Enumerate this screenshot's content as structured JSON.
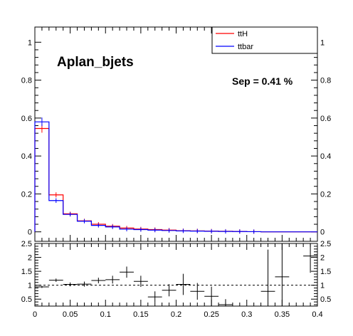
{
  "chart_data": [
    {
      "type": "histogram",
      "title": "Aplan_bjets",
      "annotation": "Sep = 0.41 %",
      "xlim": [
        0,
        0.4
      ],
      "ylim": [
        -0.05,
        1.08
      ],
      "yticks": [
        0,
        0.2,
        0.4,
        0.6,
        0.8,
        1
      ],
      "ytick_labels": [
        "0",
        "0.2",
        "0.4",
        "0.6",
        "0.8",
        "1"
      ],
      "legend": {
        "placement": "top-right",
        "entries": [
          "ttH",
          "ttbar"
        ]
      },
      "bin_edges": [
        0,
        0.02,
        0.04,
        0.06,
        0.08,
        0.1,
        0.12,
        0.14,
        0.16,
        0.18,
        0.2,
        0.22,
        0.24,
        0.26,
        0.28,
        0.3,
        0.32,
        0.34,
        0.36,
        0.38,
        0.4
      ],
      "series": [
        {
          "name": "ttH",
          "color": "#ff0000",
          "values": [
            0.545,
            0.195,
            0.095,
            0.058,
            0.04,
            0.03,
            0.02,
            0.015,
            0.012,
            0.009,
            0.006,
            0.005,
            0.004,
            0.003,
            0.002,
            0.001,
            0,
            0,
            0,
            0
          ]
        },
        {
          "name": "ttbar",
          "color": "#0000ff",
          "values": [
            0.58,
            0.165,
            0.092,
            0.056,
            0.034,
            0.026,
            0.014,
            0.012,
            0.009,
            0.007,
            0.005,
            0.004,
            0.003,
            0.002,
            0.0015,
            0.001,
            0,
            0,
            0,
            0
          ]
        }
      ]
    },
    {
      "type": "scatter",
      "xlim": [
        0,
        0.4
      ],
      "ylim": [
        0.25,
        2.5
      ],
      "xticks": [
        0,
        0.05,
        0.1,
        0.15,
        0.2,
        0.25,
        0.3,
        0.35,
        0.4
      ],
      "xtick_labels": [
        "0",
        "0.05",
        "0.1",
        "0.15",
        "0.2",
        "0.25",
        "0.3",
        "0.35",
        "0.4"
      ],
      "yticks": [
        0.5,
        1,
        1.5,
        2,
        2.5
      ],
      "ytick_labels": [
        "0.5",
        "1",
        "1.5",
        "2",
        "2.5"
      ],
      "reference_line": 1,
      "ratio_points": [
        {
          "x": 0.01,
          "y": 0.94,
          "err": 0.04
        },
        {
          "x": 0.03,
          "y": 1.18,
          "err": 0.06
        },
        {
          "x": 0.05,
          "y": 1.03,
          "err": 0.07
        },
        {
          "x": 0.07,
          "y": 1.04,
          "err": 0.09
        },
        {
          "x": 0.09,
          "y": 1.17,
          "err": 0.1
        },
        {
          "x": 0.11,
          "y": 1.2,
          "err": 0.14
        },
        {
          "x": 0.13,
          "y": 1.47,
          "err": 0.2
        },
        {
          "x": 0.15,
          "y": 1.14,
          "err": 0.2
        },
        {
          "x": 0.17,
          "y": 0.58,
          "err": 0.2
        },
        {
          "x": 0.19,
          "y": 0.82,
          "err": 0.22
        },
        {
          "x": 0.21,
          "y": 1.03,
          "err": 0.38
        },
        {
          "x": 0.23,
          "y": 0.78,
          "err": 0.3
        },
        {
          "x": 0.25,
          "y": 0.6,
          "err": 0.35
        },
        {
          "x": 0.27,
          "y": 0.3,
          "err": 0.2
        },
        {
          "x": 0.33,
          "y": 0.78,
          "err": 1.5
        },
        {
          "x": 0.35,
          "y": 1.3,
          "err": 1.3
        },
        {
          "x": 0.39,
          "y": 2.05,
          "err": 0.6
        }
      ]
    }
  ]
}
